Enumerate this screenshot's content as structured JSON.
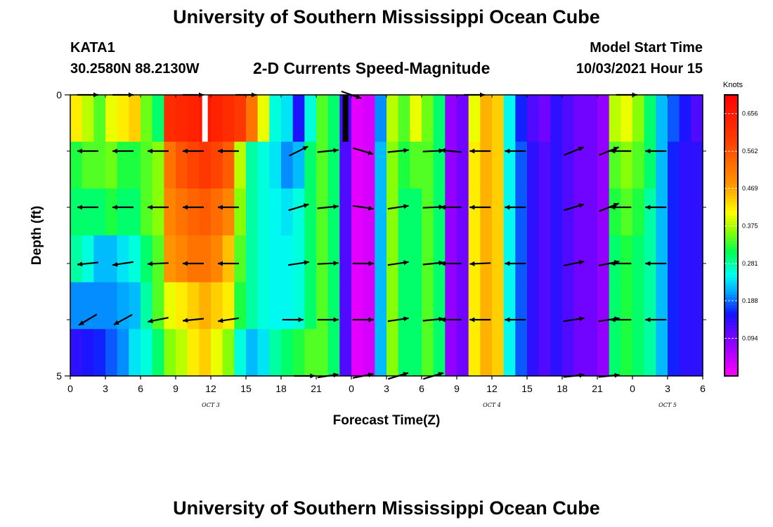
{
  "page": {
    "title": "University of Southern Mississippi Ocean Cube",
    "footer_title": "University of Southern Mississippi Ocean Cube",
    "station_id": "KATA1",
    "station_coords": "30.2580N  88.2130W",
    "subtitle": "2-D Currents Speed-Magnitude",
    "model_start_label": "Model Start Time",
    "model_start_value": "10/03/2021 Hour 15"
  },
  "chart_data": {
    "type": "heatmap",
    "title": "2-D Currents Speed-Magnitude",
    "xlabel": "Forecast Time(Z)",
    "ylabel": "Depth (ft)",
    "colorbar_label": "Knots",
    "colorbar_ticks": [
      0.094,
      0.188,
      0.281,
      0.375,
      0.469,
      0.562,
      0.656
    ],
    "colorbar_range": [
      0.0,
      0.703
    ],
    "x_range_hours": [
      0,
      54
    ],
    "x_ticks": [
      {
        "h": 0,
        "label": "0"
      },
      {
        "h": 3,
        "label": "3"
      },
      {
        "h": 6,
        "label": "6"
      },
      {
        "h": 9,
        "label": "9"
      },
      {
        "h": 12,
        "label": "12"
      },
      {
        "h": 15,
        "label": "15"
      },
      {
        "h": 18,
        "label": "18"
      },
      {
        "h": 21,
        "label": "21"
      },
      {
        "h": 24,
        "label": "0"
      },
      {
        "h": 27,
        "label": "3"
      },
      {
        "h": 30,
        "label": "6"
      },
      {
        "h": 33,
        "label": "9"
      },
      {
        "h": 36,
        "label": "12"
      },
      {
        "h": 39,
        "label": "15"
      },
      {
        "h": 42,
        "label": "18"
      },
      {
        "h": 45,
        "label": "21"
      },
      {
        "h": 48,
        "label": "0"
      },
      {
        "h": 51,
        "label": "3"
      },
      {
        "h": 54,
        "label": "6"
      }
    ],
    "date_labels": [
      {
        "h": 12,
        "label": "OCT 3"
      },
      {
        "h": 36,
        "label": "OCT 4"
      },
      {
        "h": 51,
        "label": "OCT 5"
      }
    ],
    "y_ticks": [
      {
        "depth": 0,
        "label": "0"
      },
      {
        "depth": 5,
        "label": "5"
      }
    ],
    "depth_levels": [
      0.25,
      1.0,
      2.0,
      3.0,
      4.0,
      4.75
    ],
    "column_hours": [
      0.5,
      1.5,
      2.5,
      3.5,
      4.5,
      5.5,
      6.5,
      7.5,
      8.5,
      9.5,
      10.5,
      11.5,
      12.5,
      13.5,
      14.5,
      15.5,
      16.5,
      17.5,
      18.5,
      19.5,
      20.5,
      21.5,
      22.5,
      23.5,
      24.5,
      25.5,
      26.5,
      27.5,
      28.5,
      29.5,
      30.5,
      31.5,
      32.5,
      33.5,
      34.5,
      35.5,
      36.5,
      37.5,
      38.5,
      39.5,
      40.5,
      41.5,
      42.5,
      43.5,
      44.5,
      45.5,
      46.5,
      47.5,
      48.5,
      49.5,
      50.5,
      51.5,
      52.5,
      53.5
    ],
    "speed_rows": [
      [
        0.42,
        0.38,
        0.34,
        0.4,
        0.42,
        0.44,
        0.35,
        0.3,
        0.62,
        0.63,
        0.64,
        0.66,
        0.64,
        0.62,
        0.6,
        0.52,
        0.4,
        0.26,
        0.24,
        0.15,
        0.26,
        0.34,
        0.3,
        0.12,
        0.02,
        0.03,
        0.2,
        0.38,
        0.34,
        0.4,
        0.35,
        0.3,
        0.08,
        0.1,
        0.4,
        0.46,
        0.44,
        0.25,
        0.16,
        0.12,
        0.1,
        0.14,
        0.12,
        0.1,
        0.1,
        0.08,
        0.38,
        0.4,
        0.36,
        0.3,
        0.22,
        0.18,
        0.15,
        0.12
      ],
      [
        0.32,
        0.34,
        0.34,
        0.35,
        0.32,
        0.32,
        0.34,
        0.36,
        0.52,
        0.56,
        0.58,
        0.6,
        0.58,
        0.55,
        0.38,
        0.28,
        0.26,
        0.24,
        0.2,
        0.22,
        0.3,
        0.34,
        0.3,
        0.12,
        0.02,
        0.03,
        0.22,
        0.36,
        0.32,
        0.34,
        0.34,
        0.3,
        0.08,
        0.1,
        0.42,
        0.46,
        0.44,
        0.25,
        0.18,
        0.14,
        0.12,
        0.14,
        0.12,
        0.1,
        0.1,
        0.08,
        0.34,
        0.36,
        0.34,
        0.3,
        0.22,
        0.16,
        0.14,
        0.14
      ],
      [
        0.3,
        0.3,
        0.3,
        0.32,
        0.3,
        0.3,
        0.34,
        0.36,
        0.5,
        0.52,
        0.54,
        0.55,
        0.53,
        0.5,
        0.36,
        0.28,
        0.26,
        0.25,
        0.24,
        0.26,
        0.3,
        0.34,
        0.3,
        0.12,
        0.02,
        0.03,
        0.22,
        0.36,
        0.3,
        0.3,
        0.34,
        0.3,
        0.08,
        0.1,
        0.42,
        0.46,
        0.44,
        0.25,
        0.18,
        0.14,
        0.12,
        0.14,
        0.12,
        0.1,
        0.1,
        0.08,
        0.32,
        0.34,
        0.32,
        0.28,
        0.22,
        0.16,
        0.14,
        0.14
      ],
      [
        0.28,
        0.26,
        0.22,
        0.22,
        0.24,
        0.26,
        0.3,
        0.34,
        0.48,
        0.5,
        0.52,
        0.52,
        0.5,
        0.45,
        0.34,
        0.28,
        0.26,
        0.25,
        0.25,
        0.26,
        0.3,
        0.34,
        0.3,
        0.12,
        0.02,
        0.03,
        0.22,
        0.36,
        0.3,
        0.3,
        0.34,
        0.3,
        0.08,
        0.1,
        0.42,
        0.46,
        0.44,
        0.25,
        0.18,
        0.14,
        0.12,
        0.14,
        0.12,
        0.1,
        0.1,
        0.08,
        0.3,
        0.32,
        0.3,
        0.28,
        0.22,
        0.16,
        0.14,
        0.14
      ],
      [
        0.2,
        0.2,
        0.2,
        0.2,
        0.21,
        0.22,
        0.28,
        0.34,
        0.4,
        0.42,
        0.44,
        0.46,
        0.44,
        0.42,
        0.32,
        0.28,
        0.26,
        0.25,
        0.25,
        0.26,
        0.3,
        0.34,
        0.3,
        0.12,
        0.02,
        0.03,
        0.22,
        0.36,
        0.3,
        0.3,
        0.34,
        0.3,
        0.08,
        0.1,
        0.42,
        0.46,
        0.44,
        0.25,
        0.18,
        0.14,
        0.12,
        0.14,
        0.12,
        0.1,
        0.1,
        0.08,
        0.3,
        0.32,
        0.3,
        0.28,
        0.22,
        0.16,
        0.14,
        0.14
      ],
      [
        0.14,
        0.15,
        0.16,
        0.18,
        0.2,
        0.24,
        0.26,
        0.3,
        0.36,
        0.38,
        0.42,
        0.44,
        0.4,
        0.36,
        0.26,
        0.22,
        0.24,
        0.28,
        0.3,
        0.32,
        0.34,
        0.34,
        0.3,
        0.12,
        0.02,
        0.03,
        0.22,
        0.36,
        0.3,
        0.3,
        0.34,
        0.3,
        0.08,
        0.1,
        0.42,
        0.46,
        0.44,
        0.25,
        0.18,
        0.14,
        0.12,
        0.14,
        0.12,
        0.1,
        0.1,
        0.08,
        0.3,
        0.32,
        0.3,
        0.28,
        0.22,
        0.16,
        0.14,
        0.14
      ]
    ],
    "missing_data_cells": [
      {
        "hour": 11.5,
        "depth": 0.25,
        "color": "#ffffff"
      },
      {
        "hour": 23.5,
        "depth": 0.25,
        "color": "#000000"
      }
    ],
    "vectors": [
      {
        "h": 1.5,
        "d": 0,
        "dx": 1,
        "dy": 0
      },
      {
        "h": 4.5,
        "d": 0,
        "dx": 1,
        "dy": 0
      },
      {
        "h": 10.5,
        "d": 0,
        "dx": 1,
        "dy": 0
      },
      {
        "h": 15,
        "d": 0,
        "dx": 1,
        "dy": 0
      },
      {
        "h": 24,
        "d": 0,
        "dx": 1,
        "dy": 0.35
      },
      {
        "h": 34.5,
        "d": 0,
        "dx": 1,
        "dy": 0
      },
      {
        "h": 47.5,
        "d": 0,
        "dx": 1,
        "dy": 0
      },
      {
        "h": 1.5,
        "d": 1,
        "dx": -1,
        "dy": 0
      },
      {
        "h": 4.5,
        "d": 1,
        "dx": -1,
        "dy": 0
      },
      {
        "h": 7.5,
        "d": 1,
        "dx": -1,
        "dy": 0
      },
      {
        "h": 10.5,
        "d": 1,
        "dx": -1,
        "dy": 0
      },
      {
        "h": 13.5,
        "d": 1,
        "dx": -1,
        "dy": 0
      },
      {
        "h": 19.5,
        "d": 1,
        "dx": 1,
        "dy": -0.5
      },
      {
        "h": 22,
        "d": 1,
        "dx": 1,
        "dy": -0.1
      },
      {
        "h": 25,
        "d": 1,
        "dx": 1,
        "dy": 0.3
      },
      {
        "h": 28,
        "d": 1,
        "dx": 1,
        "dy": -0.1
      },
      {
        "h": 31,
        "d": 1,
        "dx": 1,
        "dy": -0.05
      },
      {
        "h": 32.5,
        "d": 1,
        "dx": -1,
        "dy": -0.1
      },
      {
        "h": 35,
        "d": 1,
        "dx": -1,
        "dy": 0
      },
      {
        "h": 38,
        "d": 1,
        "dx": -1,
        "dy": 0
      },
      {
        "h": 43,
        "d": 1,
        "dx": 1,
        "dy": -0.4
      },
      {
        "h": 46,
        "d": 1,
        "dx": 1,
        "dy": -0.4
      },
      {
        "h": 47,
        "d": 1,
        "dx": -1,
        "dy": 0
      },
      {
        "h": 50,
        "d": 1,
        "dx": -1,
        "dy": 0
      },
      {
        "h": 1.5,
        "d": 2,
        "dx": -1,
        "dy": 0
      },
      {
        "h": 4.5,
        "d": 2,
        "dx": -1,
        "dy": 0
      },
      {
        "h": 7.5,
        "d": 2,
        "dx": -1,
        "dy": 0
      },
      {
        "h": 10.5,
        "d": 2,
        "dx": -1,
        "dy": 0
      },
      {
        "h": 13.5,
        "d": 2,
        "dx": -1,
        "dy": 0
      },
      {
        "h": 19.5,
        "d": 2,
        "dx": 1,
        "dy": -0.3
      },
      {
        "h": 22,
        "d": 2,
        "dx": 1,
        "dy": -0.1
      },
      {
        "h": 25,
        "d": 2,
        "dx": 1,
        "dy": 0.15
      },
      {
        "h": 28,
        "d": 2,
        "dx": 1,
        "dy": -0.15
      },
      {
        "h": 31,
        "d": 2,
        "dx": 1,
        "dy": -0.05
      },
      {
        "h": 32.5,
        "d": 2,
        "dx": -1,
        "dy": 0
      },
      {
        "h": 35,
        "d": 2,
        "dx": -1,
        "dy": 0
      },
      {
        "h": 38,
        "d": 2,
        "dx": -1,
        "dy": 0
      },
      {
        "h": 43,
        "d": 2,
        "dx": 1,
        "dy": -0.3
      },
      {
        "h": 46,
        "d": 2,
        "dx": 1,
        "dy": -0.4
      },
      {
        "h": 47,
        "d": 2,
        "dx": -1,
        "dy": 0
      },
      {
        "h": 50,
        "d": 2,
        "dx": -1,
        "dy": 0
      },
      {
        "h": 1.5,
        "d": 3,
        "dx": -1,
        "dy": 0.1
      },
      {
        "h": 4.5,
        "d": 3,
        "dx": -1,
        "dy": 0.15
      },
      {
        "h": 7.5,
        "d": 3,
        "dx": -1,
        "dy": 0.05
      },
      {
        "h": 10.5,
        "d": 3,
        "dx": -1,
        "dy": 0
      },
      {
        "h": 13.5,
        "d": 3,
        "dx": -1,
        "dy": 0
      },
      {
        "h": 19.5,
        "d": 3,
        "dx": 1,
        "dy": -0.15
      },
      {
        "h": 22,
        "d": 3,
        "dx": 1,
        "dy": -0.05
      },
      {
        "h": 25,
        "d": 3,
        "dx": 1,
        "dy": 0
      },
      {
        "h": 28,
        "d": 3,
        "dx": 1,
        "dy": -0.15
      },
      {
        "h": 31,
        "d": 3,
        "dx": 1,
        "dy": -0.1
      },
      {
        "h": 32.5,
        "d": 3,
        "dx": -1,
        "dy": 0
      },
      {
        "h": 35,
        "d": 3,
        "dx": -1,
        "dy": 0.05
      },
      {
        "h": 38,
        "d": 3,
        "dx": -1,
        "dy": 0
      },
      {
        "h": 43,
        "d": 3,
        "dx": 1,
        "dy": -0.2
      },
      {
        "h": 46,
        "d": 3,
        "dx": 1,
        "dy": -0.2
      },
      {
        "h": 47,
        "d": 3,
        "dx": -1,
        "dy": 0
      },
      {
        "h": 50,
        "d": 3,
        "dx": -1,
        "dy": 0
      },
      {
        "h": 1.5,
        "d": 4,
        "dx": -1,
        "dy": 0.6
      },
      {
        "h": 4.5,
        "d": 4,
        "dx": -1,
        "dy": 0.55
      },
      {
        "h": 7.5,
        "d": 4,
        "dx": -1,
        "dy": 0.2
      },
      {
        "h": 10.5,
        "d": 4,
        "dx": -1,
        "dy": 0.1
      },
      {
        "h": 13.5,
        "d": 4,
        "dx": -1,
        "dy": 0.15
      },
      {
        "h": 19,
        "d": 4,
        "dx": 1,
        "dy": 0
      },
      {
        "h": 22,
        "d": 4,
        "dx": 1,
        "dy": 0
      },
      {
        "h": 25,
        "d": 4,
        "dx": 1,
        "dy": 0
      },
      {
        "h": 28,
        "d": 4,
        "dx": 1,
        "dy": -0.15
      },
      {
        "h": 31,
        "d": 4,
        "dx": 1,
        "dy": -0.1
      },
      {
        "h": 32.5,
        "d": 4,
        "dx": -1,
        "dy": 0
      },
      {
        "h": 35,
        "d": 4,
        "dx": -1,
        "dy": 0
      },
      {
        "h": 38,
        "d": 4,
        "dx": -1,
        "dy": 0
      },
      {
        "h": 43,
        "d": 4,
        "dx": 1,
        "dy": -0.15
      },
      {
        "h": 46,
        "d": 4,
        "dx": 1,
        "dy": -0.15
      },
      {
        "h": 47,
        "d": 4,
        "dx": -1,
        "dy": 0
      },
      {
        "h": 50,
        "d": 4,
        "dx": -1,
        "dy": 0
      },
      {
        "h": 20,
        "d": 5,
        "dx": 1,
        "dy": 0
      },
      {
        "h": 22,
        "d": 5,
        "dx": 1,
        "dy": -0.15
      },
      {
        "h": 25,
        "d": 5,
        "dx": 1,
        "dy": -0.2
      },
      {
        "h": 28,
        "d": 5,
        "dx": 1,
        "dy": -0.3
      },
      {
        "h": 31,
        "d": 5,
        "dx": 1,
        "dy": -0.3
      },
      {
        "h": 43,
        "d": 5,
        "dx": 1,
        "dy": -0.1
      },
      {
        "h": 46,
        "d": 5,
        "dx": 1,
        "dy": -0.1
      }
    ]
  }
}
